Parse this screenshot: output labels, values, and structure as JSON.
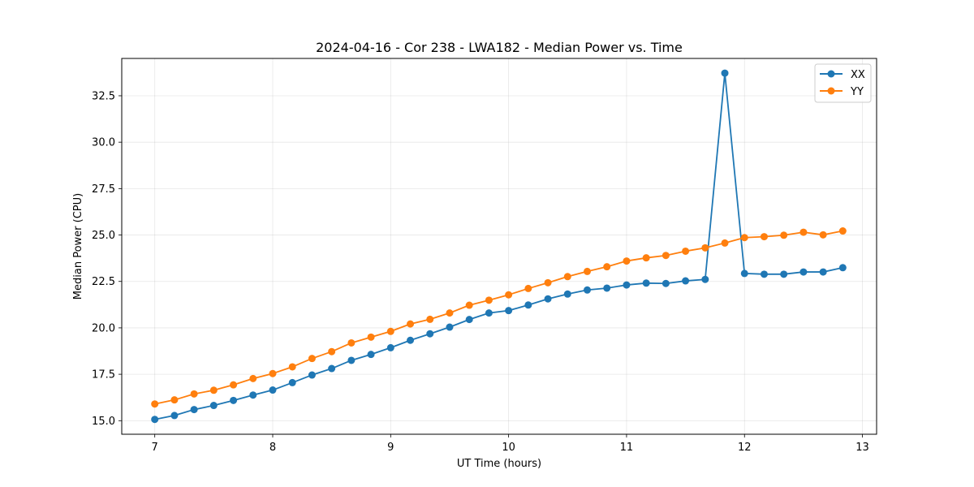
{
  "chart_data": {
    "type": "line",
    "title": "2024-04-16 - Cor 238 - LWA182 - Median Power vs. Time",
    "xlabel": "UT Time (hours)",
    "ylabel": "Median Power (CPU)",
    "xlim": [
      6.72,
      13.12
    ],
    "ylim": [
      14.27,
      34.51
    ],
    "xticks": [
      7,
      8,
      9,
      10,
      11,
      12,
      13
    ],
    "yticks": [
      15.0,
      17.5,
      20.0,
      22.5,
      25.0,
      27.5,
      30.0,
      32.5
    ],
    "ytick_labels": [
      "15.0",
      "17.5",
      "20.0",
      "22.5",
      "25.0",
      "27.5",
      "30.0",
      "32.5"
    ],
    "grid": true,
    "legend_position": "top-right",
    "x": [
      7.0,
      7.1667,
      7.3333,
      7.5,
      7.6667,
      7.8333,
      8.0,
      8.1667,
      8.3333,
      8.5,
      8.6667,
      8.8333,
      9.0,
      9.1667,
      9.3333,
      9.5,
      9.6667,
      9.8333,
      10.0,
      10.1667,
      10.3333,
      10.5,
      10.6667,
      10.8333,
      11.0,
      11.1667,
      11.3333,
      11.5,
      11.6667,
      11.8333,
      12.0,
      12.1667,
      12.3333,
      12.5,
      12.6667,
      12.8333
    ],
    "series": [
      {
        "name": "XX",
        "color": "#1f77b4",
        "values": [
          15.07,
          15.28,
          15.6,
          15.82,
          16.09,
          16.38,
          16.65,
          17.05,
          17.46,
          17.81,
          18.25,
          18.57,
          18.93,
          19.33,
          19.68,
          20.04,
          20.45,
          20.8,
          20.93,
          21.23,
          21.56,
          21.82,
          22.04,
          22.14,
          22.31,
          22.41,
          22.39,
          22.53,
          22.61,
          33.72,
          22.93,
          22.89,
          22.89,
          23.01,
          23.01,
          23.24
        ]
      },
      {
        "name": "YY",
        "color": "#ff7f0e",
        "values": [
          15.9,
          16.12,
          16.44,
          16.64,
          16.93,
          17.27,
          17.54,
          17.9,
          18.35,
          18.72,
          19.19,
          19.5,
          19.81,
          20.21,
          20.46,
          20.8,
          21.22,
          21.49,
          21.78,
          22.12,
          22.43,
          22.76,
          23.04,
          23.29,
          23.6,
          23.77,
          23.9,
          24.13,
          24.31,
          24.57,
          24.86,
          24.91,
          24.99,
          25.15,
          25.01,
          25.22
        ]
      }
    ]
  }
}
